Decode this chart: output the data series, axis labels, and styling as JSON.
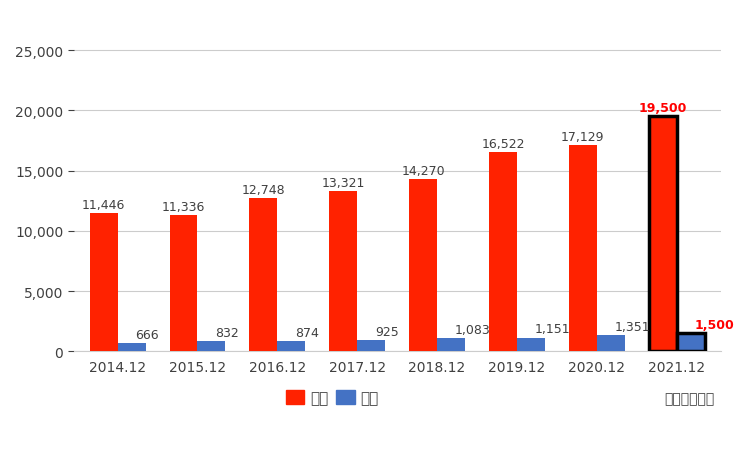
{
  "categories": [
    "2014.12",
    "2015.12",
    "2016.12",
    "2017.12",
    "2018.12",
    "2019.12",
    "2020.12",
    "2021.12"
  ],
  "sales": [
    11446,
    11336,
    12748,
    13321,
    14270,
    16522,
    17129,
    19500
  ],
  "profit": [
    666,
    832,
    874,
    925,
    1083,
    1151,
    1351,
    1500
  ],
  "sales_color": "#FF2200",
  "profit_color": "#4472C4",
  "forecast_index": 7,
  "bar_width": 0.35,
  "label_color_normal": "#404040",
  "label_color_forecast": "#FF0000",
  "ylim": [
    0,
    28000
  ],
  "yticks": [
    0,
    5000,
    10000,
    15000,
    20000,
    25000
  ],
  "legend_sales": "売上",
  "legend_profit": "経常",
  "unit_text": "単位：百万円",
  "background_color": "#FFFFFF",
  "plot_bg_color": "#FFFFFF",
  "text_color": "#404040",
  "grid_color": "#CCCCCC",
  "label_fontsize": 9,
  "tick_fontsize": 10,
  "legend_fontsize": 11
}
